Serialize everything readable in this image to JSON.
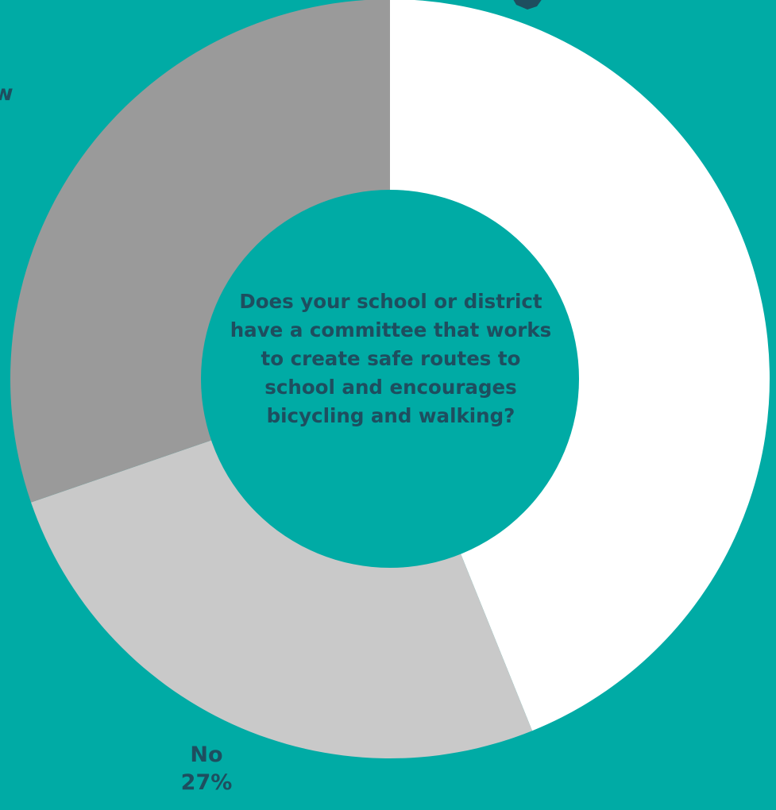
{
  "chart_data": {
    "type": "pie",
    "style": "donut",
    "center_text": "Does your school or district have a committee that works to create safe routes to school and encourages bicycling and walking?",
    "slices": [
      {
        "label": "",
        "value": null,
        "color": "#ffffff"
      },
      {
        "label": "No",
        "value": 27,
        "value_label": "27%",
        "color": "#c9c9c9"
      },
      {
        "label": "",
        "value": null,
        "color": "#9a9a9a"
      }
    ],
    "slice_angles_deg": [
      0,
      158,
      251,
      360
    ],
    "partial_labels": [
      "ow"
    ],
    "colors": {
      "background": "#00aba5",
      "text": "#1e4e5f",
      "center_fill": "#00aba5",
      "leader": "#1e4e5f"
    }
  }
}
